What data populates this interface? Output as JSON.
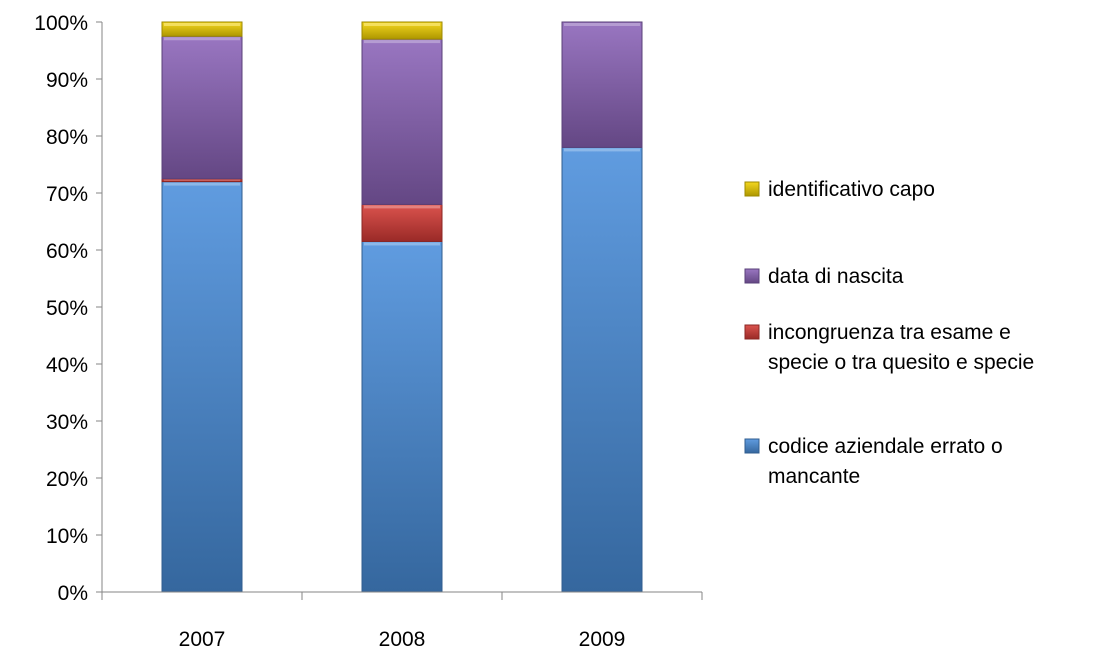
{
  "chart_data": {
    "type": "bar",
    "stacked": true,
    "categories": [
      "2007",
      "2008",
      "2009"
    ],
    "series": [
      {
        "name": "codice aziendale errato o mancante",
        "color": "#4a8fdc",
        "values": [
          72,
          61.5,
          78
        ]
      },
      {
        "name": "incongruenza tra esame e specie o tra quesito e specie",
        "color": "#d63b36",
        "values": [
          0.5,
          6.5,
          0
        ]
      },
      {
        "name": "data di nascita",
        "color": "#8b63b8",
        "values": [
          25,
          29,
          22
        ]
      },
      {
        "name": "identificativo capo",
        "color": "#f2d200",
        "values": [
          2.5,
          3,
          0
        ]
      }
    ],
    "ylim": [
      0,
      100
    ],
    "yticks": [
      "0%",
      "10%",
      "20%",
      "30%",
      "40%",
      "50%",
      "60%",
      "70%",
      "80%",
      "90%",
      "100%"
    ],
    "grid": false,
    "legend": {
      "position": "right",
      "order": [
        "identificativo capo",
        "data di nascita",
        "incongruenza tra esame e specie o tra quesito e specie",
        "codice aziendale errato o mancante"
      ],
      "lines": [
        [
          "identificativo capo"
        ],
        [
          "data di nascita"
        ],
        [
          "incongruenza tra esame e",
          "specie o tra quesito e specie"
        ],
        [
          "codice aziendale errato o",
          "mancante"
        ]
      ]
    },
    "title": "",
    "xlabel": "",
    "ylabel": ""
  }
}
